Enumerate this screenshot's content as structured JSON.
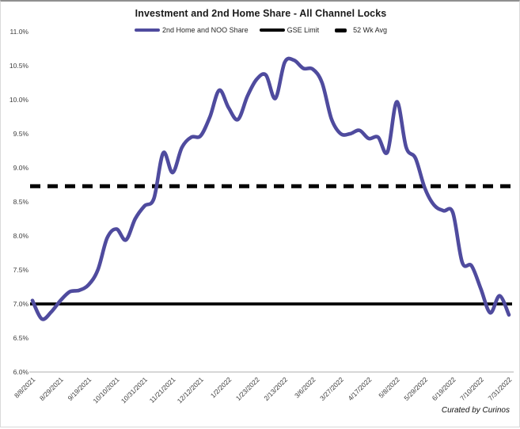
{
  "header": {
    "title": "Investment and 2nd Home Share - All Channel Locks"
  },
  "legend": {
    "items": [
      {
        "label": "2nd Home and NOO Share",
        "color": "#4F4B9E",
        "style": "solid"
      },
      {
        "label": "GSE Limit",
        "color": "#000000",
        "style": "solid"
      },
      {
        "label": "52 Wk Avg",
        "color": "#000000",
        "style": "dashed"
      }
    ]
  },
  "footer": {
    "credit": "Curated by Curinos"
  },
  "colors": {
    "series": "#4F4B9E",
    "reference": "#000000",
    "axis_line": "#bfbfbf",
    "tick_text": "#3d3d3d"
  },
  "chart_data": {
    "type": "line",
    "title": "Investment and 2nd Home Share - All Channel Locks",
    "x": [
      "8/8/2021",
      "8/15/2021",
      "8/22/2021",
      "8/29/2021",
      "9/5/2021",
      "9/12/2021",
      "9/19/2021",
      "9/26/2021",
      "10/3/2021",
      "10/10/2021",
      "10/17/2021",
      "10/24/2021",
      "10/31/2021",
      "11/7/2021",
      "11/14/2021",
      "11/21/2021",
      "11/28/2021",
      "12/5/2021",
      "12/12/2021",
      "12/19/2021",
      "12/26/2021",
      "1/2/2022",
      "1/9/2022",
      "1/16/2022",
      "1/23/2022",
      "1/30/2022",
      "2/6/2022",
      "2/13/2022",
      "2/20/2022",
      "2/27/2022",
      "3/6/2022",
      "3/13/2022",
      "3/20/2022",
      "3/27/2022",
      "4/3/2022",
      "4/10/2022",
      "4/17/2022",
      "4/24/2022",
      "5/1/2022",
      "5/8/2022",
      "5/15/2022",
      "5/22/2022",
      "5/29/2022",
      "6/5/2022",
      "6/12/2022",
      "6/19/2022",
      "6/26/2022",
      "7/3/2022",
      "7/10/2022",
      "7/17/2022",
      "7/24/2022",
      "7/31/2022"
    ],
    "x_tick_every": 3,
    "x_tick_labels": [
      "8/8/2021",
      "8/29/2021",
      "9/19/2021",
      "10/10/2021",
      "10/31/2021",
      "11/21/2021",
      "12/12/2021",
      "1/2/2022",
      "1/23/2022",
      "2/13/2022",
      "3/6/2022",
      "3/27/2022",
      "4/17/2022",
      "5/8/2022",
      "5/29/2022",
      "6/19/2022",
      "7/10/2022",
      "7/31/2022"
    ],
    "series": [
      {
        "name": "2nd Home and NOO Share",
        "color": "#4F4B9E",
        "style": "solid",
        "values": [
          7.05,
          6.78,
          6.88,
          7.05,
          7.18,
          7.2,
          7.28,
          7.5,
          7.97,
          8.1,
          7.94,
          8.25,
          8.44,
          8.55,
          9.22,
          8.93,
          9.3,
          9.45,
          9.47,
          9.75,
          10.14,
          9.88,
          9.71,
          10.05,
          10.3,
          10.36,
          10.02,
          10.55,
          10.58,
          10.46,
          10.45,
          10.25,
          9.72,
          9.5,
          9.5,
          9.55,
          9.43,
          9.45,
          9.23,
          9.97,
          9.3,
          9.14,
          8.7,
          8.45,
          8.37,
          8.34,
          7.61,
          7.56,
          7.22,
          6.87,
          7.12,
          6.84
        ]
      },
      {
        "name": "GSE Limit",
        "color": "#000000",
        "style": "solid",
        "constant": 7.0
      },
      {
        "name": "52 Wk Avg",
        "color": "#000000",
        "style": "dashed",
        "constant": 8.73
      }
    ],
    "ylim": [
      6.0,
      11.0
    ],
    "y_tick_step": 0.5,
    "y_tick_labels": [
      "6.0%",
      "6.5%",
      "7.0%",
      "7.5%",
      "8.0%",
      "8.5%",
      "9.0%",
      "9.5%",
      "10.0%",
      "10.5%",
      "11.0%"
    ],
    "grid": false,
    "legend_position": "top"
  }
}
